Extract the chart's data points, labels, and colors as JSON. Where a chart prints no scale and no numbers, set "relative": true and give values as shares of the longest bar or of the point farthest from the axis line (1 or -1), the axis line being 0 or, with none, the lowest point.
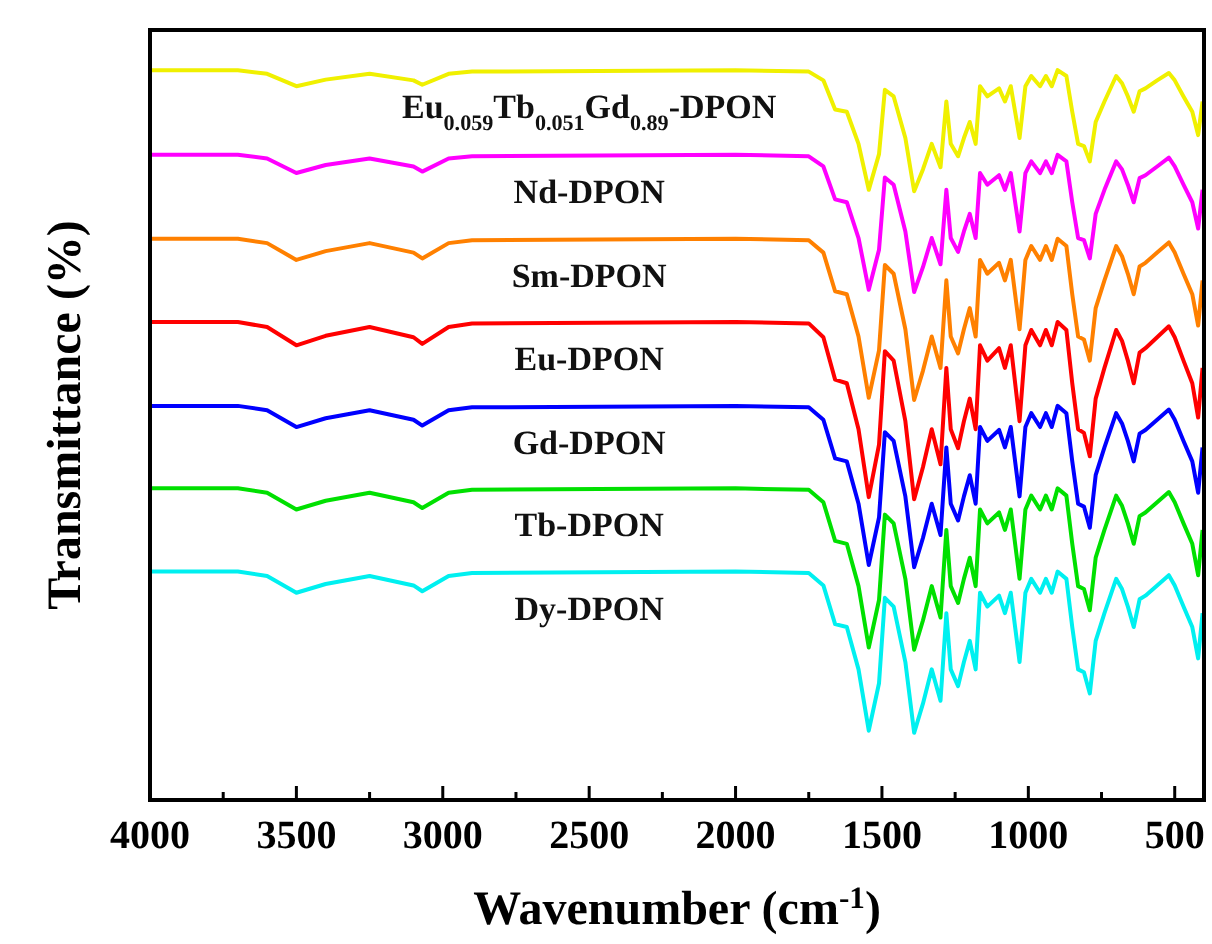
{
  "chart_data": {
    "type": "line",
    "relative": true,
    "xlabel": "Wavenumber (cm$^{-1}$)",
    "ylabel": "Transmittance (%)",
    "xlim": [
      4000,
      400
    ],
    "xticks": [
      4000,
      {
        "value": 3750,
        "label": null
      },
      3500,
      {
        "value": 3250,
        "label": null
      },
      3000,
      {
        "value": 2750,
        "label": null
      },
      2500,
      {
        "value": 2250,
        "label": null
      },
      2000,
      {
        "value": 1750,
        "label": null
      },
      1500,
      {
        "value": 1250,
        "label": null
      },
      1000,
      {
        "value": 750,
        "label": null
      },
      500
    ],
    "grid": false,
    "marker": "none",
    "line_style": "solid",
    "x": [
      4000,
      3700,
      3600,
      3500,
      3400,
      3250,
      3100,
      3070,
      2980,
      2900,
      2000,
      1750,
      1700,
      1660,
      1620,
      1580,
      1545,
      1510,
      1490,
      1460,
      1420,
      1390,
      1360,
      1330,
      1300,
      1280,
      1265,
      1240,
      1220,
      1200,
      1180,
      1165,
      1140,
      1100,
      1080,
      1060,
      1030,
      1010,
      990,
      960,
      940,
      920,
      900,
      870,
      850,
      830,
      810,
      790,
      770,
      740,
      700,
      680,
      660,
      640,
      620,
      600,
      560,
      520,
      500,
      470,
      440,
      420,
      405
    ],
    "series": [
      {
        "name": "Eu$_{0.059}$Tb$_{0.051}$Gd$_{0.89}$-DPON",
        "color": "#f0f000",
        "values": [
          1.0,
          1.0,
          0.995,
          0.978,
          0.987,
          0.995,
          0.986,
          0.98,
          0.995,
          0.998,
          1.0,
          0.998,
          0.986,
          0.946,
          0.943,
          0.899,
          0.836,
          0.885,
          0.973,
          0.964,
          0.907,
          0.834,
          0.864,
          0.899,
          0.867,
          0.957,
          0.899,
          0.882,
          0.907,
          0.929,
          0.899,
          0.978,
          0.964,
          0.975,
          0.957,
          0.978,
          0.907,
          0.978,
          0.992,
          0.978,
          0.992,
          0.978,
          1.0,
          0.992,
          0.943,
          0.899,
          0.896,
          0.875,
          0.929,
          0.957,
          0.992,
          0.982,
          0.964,
          0.943,
          0.971,
          0.975,
          0.986,
          0.996,
          0.986,
          0.964,
          0.943,
          0.911,
          0.957
        ]
      },
      {
        "name": "Nd-DPON",
        "color": "#ff00ff",
        "values": [
          0.884,
          0.884,
          0.879,
          0.859,
          0.87,
          0.879,
          0.868,
          0.861,
          0.879,
          0.882,
          0.884,
          0.882,
          0.868,
          0.823,
          0.819,
          0.77,
          0.699,
          0.754,
          0.853,
          0.843,
          0.779,
          0.696,
          0.73,
          0.77,
          0.734,
          0.836,
          0.77,
          0.751,
          0.779,
          0.803,
          0.77,
          0.859,
          0.843,
          0.856,
          0.836,
          0.859,
          0.779,
          0.859,
          0.875,
          0.859,
          0.875,
          0.859,
          0.884,
          0.875,
          0.819,
          0.77,
          0.767,
          0.742,
          0.803,
          0.836,
          0.875,
          0.864,
          0.843,
          0.819,
          0.852,
          0.856,
          0.868,
          0.88,
          0.868,
          0.843,
          0.819,
          0.783,
          0.836
        ]
      },
      {
        "name": "Sm-DPON",
        "color": "#ff8000",
        "values": [
          0.769,
          0.769,
          0.763,
          0.74,
          0.752,
          0.763,
          0.75,
          0.742,
          0.763,
          0.767,
          0.769,
          0.767,
          0.75,
          0.697,
          0.693,
          0.635,
          0.551,
          0.616,
          0.733,
          0.721,
          0.645,
          0.548,
          0.588,
          0.635,
          0.592,
          0.712,
          0.635,
          0.612,
          0.645,
          0.674,
          0.635,
          0.74,
          0.721,
          0.736,
          0.712,
          0.74,
          0.645,
          0.74,
          0.759,
          0.74,
          0.759,
          0.74,
          0.769,
          0.759,
          0.693,
          0.635,
          0.631,
          0.602,
          0.674,
          0.712,
          0.759,
          0.745,
          0.721,
          0.693,
          0.731,
          0.736,
          0.75,
          0.764,
          0.75,
          0.721,
          0.693,
          0.65,
          0.712
        ]
      },
      {
        "name": "Eu-DPON",
        "color": "#ff0000",
        "values": [
          0.655,
          0.655,
          0.648,
          0.623,
          0.636,
          0.648,
          0.634,
          0.625,
          0.648,
          0.653,
          0.655,
          0.653,
          0.634,
          0.576,
          0.571,
          0.508,
          0.415,
          0.487,
          0.615,
          0.602,
          0.519,
          0.412,
          0.456,
          0.508,
          0.46,
          0.592,
          0.508,
          0.482,
          0.519,
          0.55,
          0.508,
          0.623,
          0.602,
          0.619,
          0.592,
          0.623,
          0.519,
          0.623,
          0.644,
          0.623,
          0.644,
          0.623,
          0.655,
          0.644,
          0.571,
          0.508,
          0.503,
          0.471,
          0.55,
          0.592,
          0.644,
          0.629,
          0.602,
          0.571,
          0.613,
          0.619,
          0.634,
          0.649,
          0.634,
          0.602,
          0.571,
          0.524,
          0.592
        ]
      },
      {
        "name": "Gd-DPON",
        "color": "#0000ff",
        "values": [
          0.54,
          0.54,
          0.534,
          0.511,
          0.523,
          0.534,
          0.521,
          0.513,
          0.534,
          0.538,
          0.54,
          0.538,
          0.521,
          0.468,
          0.464,
          0.406,
          0.322,
          0.387,
          0.504,
          0.492,
          0.416,
          0.319,
          0.359,
          0.406,
          0.363,
          0.483,
          0.406,
          0.383,
          0.416,
          0.445,
          0.406,
          0.511,
          0.492,
          0.507,
          0.483,
          0.511,
          0.416,
          0.511,
          0.53,
          0.511,
          0.53,
          0.511,
          0.54,
          0.53,
          0.464,
          0.406,
          0.402,
          0.373,
          0.445,
          0.483,
          0.53,
          0.516,
          0.492,
          0.464,
          0.502,
          0.507,
          0.521,
          0.535,
          0.521,
          0.492,
          0.464,
          0.421,
          0.483
        ]
      },
      {
        "name": "Tb-DPON",
        "color": "#00e000",
        "values": [
          0.427,
          0.427,
          0.421,
          0.398,
          0.41,
          0.421,
          0.408,
          0.4,
          0.421,
          0.425,
          0.427,
          0.425,
          0.408,
          0.355,
          0.351,
          0.293,
          0.209,
          0.274,
          0.391,
          0.379,
          0.303,
          0.206,
          0.246,
          0.293,
          0.25,
          0.37,
          0.293,
          0.27,
          0.303,
          0.332,
          0.293,
          0.398,
          0.379,
          0.394,
          0.37,
          0.398,
          0.303,
          0.398,
          0.417,
          0.398,
          0.417,
          0.398,
          0.427,
          0.417,
          0.351,
          0.293,
          0.289,
          0.26,
          0.332,
          0.37,
          0.417,
          0.403,
          0.379,
          0.351,
          0.389,
          0.394,
          0.408,
          0.422,
          0.408,
          0.379,
          0.351,
          0.308,
          0.37
        ]
      },
      {
        "name": "Dy-DPON",
        "color": "#00f0f0",
        "values": [
          0.313,
          0.313,
          0.307,
          0.284,
          0.296,
          0.307,
          0.294,
          0.286,
          0.307,
          0.311,
          0.313,
          0.311,
          0.294,
          0.241,
          0.237,
          0.179,
          0.095,
          0.16,
          0.277,
          0.265,
          0.189,
          0.092,
          0.132,
          0.179,
          0.136,
          0.256,
          0.179,
          0.156,
          0.189,
          0.218,
          0.179,
          0.284,
          0.265,
          0.28,
          0.256,
          0.284,
          0.189,
          0.284,
          0.303,
          0.284,
          0.303,
          0.284,
          0.313,
          0.303,
          0.237,
          0.179,
          0.175,
          0.146,
          0.218,
          0.256,
          0.303,
          0.289,
          0.265,
          0.237,
          0.275,
          0.28,
          0.294,
          0.308,
          0.294,
          0.265,
          0.237,
          0.194,
          0.256
        ]
      }
    ]
  }
}
